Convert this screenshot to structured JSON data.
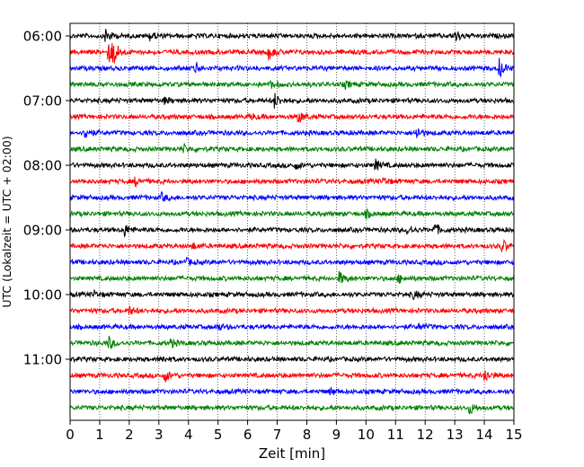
{
  "chart_data": {
    "type": "line",
    "title": "",
    "xlabel": "Zeit  [min]",
    "ylabel": "UTC (Lokalzeit = UTC + 02:00)",
    "xlim": [
      0,
      15
    ],
    "x_ticks": [
      "0",
      "1",
      "2",
      "3",
      "4",
      "5",
      "6",
      "7",
      "8",
      "9",
      "10",
      "11",
      "12",
      "13",
      "14",
      "15"
    ],
    "y_ticks": [
      {
        "label": "06:00",
        "trace_index": 0
      },
      {
        "label": "07:00",
        "trace_index": 4
      },
      {
        "label": "08:00",
        "trace_index": 8
      },
      {
        "label": "09:00",
        "trace_index": 12
      },
      {
        "label": "10:00",
        "trace_index": 16
      },
      {
        "label": "11:00",
        "trace_index": 20
      }
    ],
    "grid": "vertical dotted",
    "colors": [
      "#000000",
      "#ff0000",
      "#0000ff",
      "#008000"
    ],
    "trace_count": 24,
    "traces": [
      {
        "start": "06:00",
        "color": "#000000",
        "events": [
          {
            "t": 1.2,
            "a": 1.0
          },
          {
            "t": 2.7,
            "a": 0.6
          },
          {
            "t": 13.0,
            "a": 0.9
          }
        ]
      },
      {
        "start": "06:15",
        "color": "#ff0000",
        "events": [
          {
            "t": 1.3,
            "a": 1.6
          },
          {
            "t": 1.45,
            "a": 1.4
          },
          {
            "t": 6.7,
            "a": 1.0
          }
        ]
      },
      {
        "start": "06:30",
        "color": "#0000ff",
        "events": [
          {
            "t": 4.2,
            "a": 0.8
          },
          {
            "t": 14.5,
            "a": 1.3
          }
        ]
      },
      {
        "start": "06:45",
        "color": "#008000",
        "events": [
          {
            "t": 6.8,
            "a": 0.5
          },
          {
            "t": 9.3,
            "a": 0.4
          }
        ]
      },
      {
        "start": "07:00",
        "color": "#000000",
        "events": [
          {
            "t": 6.9,
            "a": 1.0
          },
          {
            "t": 3.2,
            "a": 0.4
          }
        ]
      },
      {
        "start": "07:15",
        "color": "#ff0000",
        "events": [
          {
            "t": 7.7,
            "a": 0.9
          },
          {
            "t": 6.1,
            "a": 0.4
          }
        ]
      },
      {
        "start": "07:30",
        "color": "#0000ff",
        "events": [
          {
            "t": 0.5,
            "a": 0.9
          },
          {
            "t": 11.7,
            "a": 0.9
          }
        ]
      },
      {
        "start": "07:45",
        "color": "#008000",
        "events": [
          {
            "t": 3.8,
            "a": 0.6
          }
        ]
      },
      {
        "start": "08:00",
        "color": "#000000",
        "events": [
          {
            "t": 10.3,
            "a": 0.8
          },
          {
            "t": 7.6,
            "a": 0.5
          }
        ]
      },
      {
        "start": "08:15",
        "color": "#ff0000",
        "events": [
          {
            "t": 2.2,
            "a": 0.6
          },
          {
            "t": 10.6,
            "a": 0.5
          }
        ]
      },
      {
        "start": "08:30",
        "color": "#0000ff",
        "events": [
          {
            "t": 3.1,
            "a": 0.5
          }
        ]
      },
      {
        "start": "08:45",
        "color": "#008000",
        "events": [
          {
            "t": 10.0,
            "a": 0.5
          }
        ]
      },
      {
        "start": "09:00",
        "color": "#000000",
        "events": [
          {
            "t": 1.8,
            "a": 1.0
          },
          {
            "t": 11.4,
            "a": 0.6
          },
          {
            "t": 12.3,
            "a": 0.9
          }
        ]
      },
      {
        "start": "09:15",
        "color": "#ff0000",
        "events": [
          {
            "t": 4.1,
            "a": 0.5
          },
          {
            "t": 14.6,
            "a": 0.9
          }
        ]
      },
      {
        "start": "09:30",
        "color": "#0000ff",
        "events": [
          {
            "t": 3.9,
            "a": 0.5
          }
        ]
      },
      {
        "start": "09:45",
        "color": "#008000",
        "events": [
          {
            "t": 9.1,
            "a": 0.9
          },
          {
            "t": 11.1,
            "a": 0.5
          }
        ]
      },
      {
        "start": "10:00",
        "color": "#000000",
        "events": [
          {
            "t": 0.8,
            "a": 0.4
          },
          {
            "t": 11.6,
            "a": 0.5
          }
        ]
      },
      {
        "start": "10:15",
        "color": "#ff0000",
        "events": [
          {
            "t": 2.0,
            "a": 0.5
          }
        ]
      },
      {
        "start": "10:30",
        "color": "#0000ff",
        "events": [
          {
            "t": 5.0,
            "a": 0.4
          },
          {
            "t": 11.8,
            "a": 0.4
          }
        ]
      },
      {
        "start": "10:45",
        "color": "#008000",
        "events": [
          {
            "t": 1.3,
            "a": 0.9
          },
          {
            "t": 3.4,
            "a": 0.5
          }
        ]
      },
      {
        "start": "11:00",
        "color": "#000000",
        "events": [
          {
            "t": 3.1,
            "a": 0.4
          }
        ]
      },
      {
        "start": "11:15",
        "color": "#ff0000",
        "events": [
          {
            "t": 3.2,
            "a": 0.8
          },
          {
            "t": 14.0,
            "a": 1.0
          }
        ]
      },
      {
        "start": "11:30",
        "color": "#0000ff",
        "events": [
          {
            "t": 8.8,
            "a": 0.5
          }
        ]
      },
      {
        "start": "11:45",
        "color": "#008000",
        "events": [
          {
            "t": 13.5,
            "a": 0.8
          }
        ]
      }
    ]
  }
}
